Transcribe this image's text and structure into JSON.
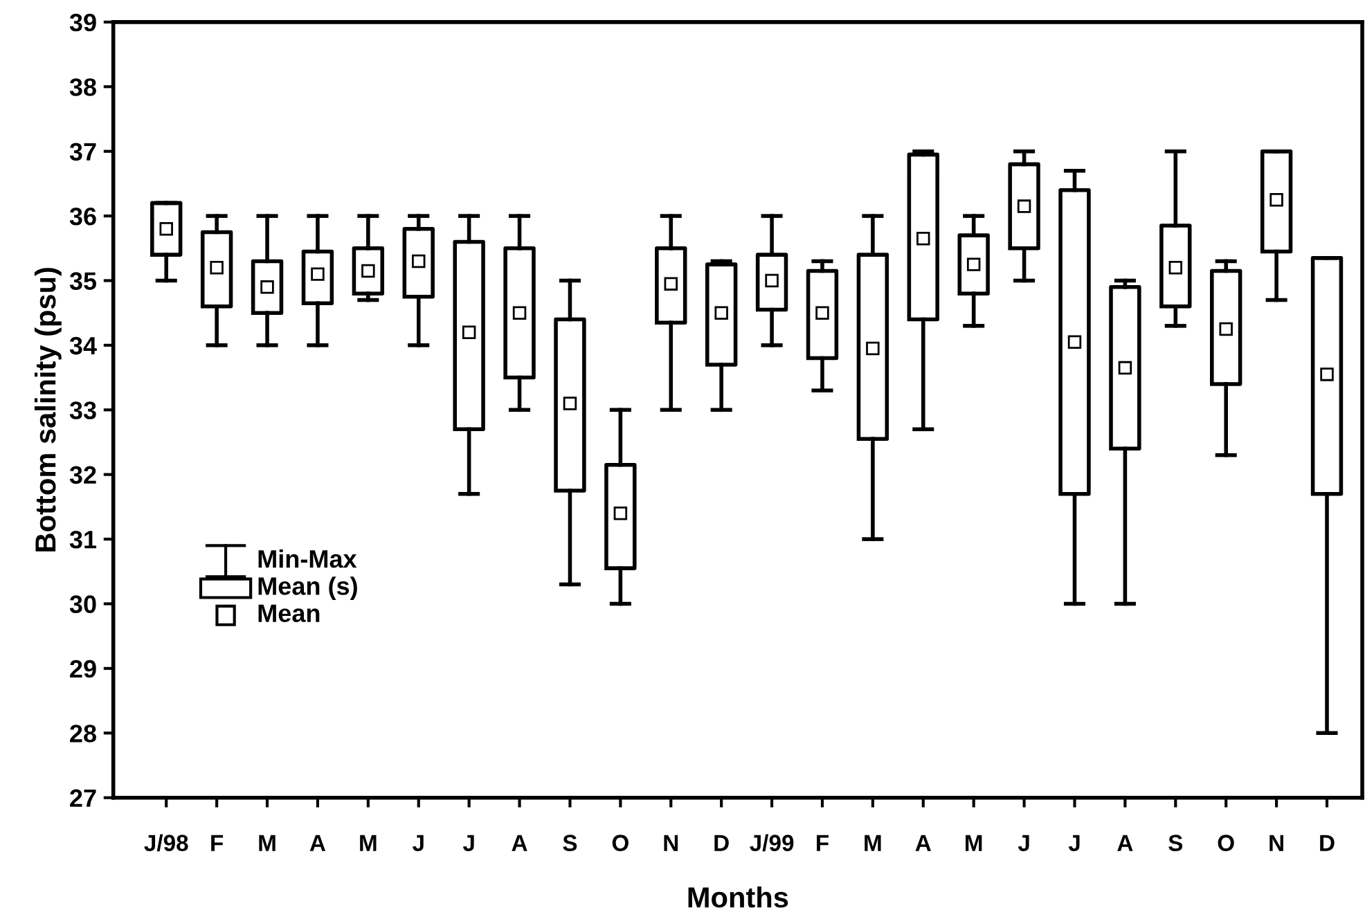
{
  "chart_data": {
    "type": "box",
    "xlabel": "Months",
    "ylabel": "Bottom salinity (psu)",
    "categories": [
      "J/98",
      "F",
      "M",
      "A",
      "M",
      "J",
      "J",
      "A",
      "S",
      "O",
      "N",
      "D",
      "J/99",
      "F",
      "M",
      "A",
      "M",
      "J",
      "J",
      "A",
      "S",
      "O",
      "N",
      "D"
    ],
    "boxes": [
      {
        "low": 35.0,
        "q1": 35.4,
        "q3": 36.2,
        "high": 36.2,
        "mean": 35.8
      },
      {
        "low": 34.0,
        "q1": 34.6,
        "q3": 35.75,
        "high": 36.0,
        "mean": 35.2
      },
      {
        "low": 34.0,
        "q1": 34.5,
        "q3": 35.3,
        "high": 36.0,
        "mean": 34.9
      },
      {
        "low": 34.0,
        "q1": 34.65,
        "q3": 35.45,
        "high": 36.0,
        "mean": 35.1
      },
      {
        "low": 34.7,
        "q1": 34.8,
        "q3": 35.5,
        "high": 36.0,
        "mean": 35.15
      },
      {
        "low": 34.0,
        "q1": 34.75,
        "q3": 35.8,
        "high": 36.0,
        "mean": 35.3
      },
      {
        "low": 31.7,
        "q1": 32.7,
        "q3": 35.6,
        "high": 36.0,
        "mean": 34.2
      },
      {
        "low": 33.0,
        "q1": 33.5,
        "q3": 35.5,
        "high": 36.0,
        "mean": 34.5
      },
      {
        "low": 30.3,
        "q1": 31.75,
        "q3": 34.4,
        "high": 35.0,
        "mean": 33.1
      },
      {
        "low": 30.0,
        "q1": 30.55,
        "q3": 32.15,
        "high": 33.0,
        "mean": 31.4
      },
      {
        "low": 33.0,
        "q1": 34.35,
        "q3": 35.5,
        "high": 36.0,
        "mean": 34.95
      },
      {
        "low": 33.0,
        "q1": 33.7,
        "q3": 35.25,
        "high": 35.3,
        "mean": 34.5
      },
      {
        "low": 34.0,
        "q1": 34.55,
        "q3": 35.4,
        "high": 36.0,
        "mean": 35.0
      },
      {
        "low": 33.3,
        "q1": 33.8,
        "q3": 35.15,
        "high": 35.3,
        "mean": 34.5
      },
      {
        "low": 31.0,
        "q1": 32.55,
        "q3": 35.4,
        "high": 36.0,
        "mean": 33.95
      },
      {
        "low": 32.7,
        "q1": 34.4,
        "q3": 36.95,
        "high": 37.0,
        "mean": 35.65
      },
      {
        "low": 34.3,
        "q1": 34.8,
        "q3": 35.7,
        "high": 36.0,
        "mean": 35.25
      },
      {
        "low": 35.0,
        "q1": 35.5,
        "q3": 36.8,
        "high": 37.0,
        "mean": 36.15
      },
      {
        "low": 30.0,
        "q1": 31.7,
        "q3": 36.4,
        "high": 36.7,
        "mean": 34.05
      },
      {
        "low": 30.0,
        "q1": 32.4,
        "q3": 34.9,
        "high": 35.0,
        "mean": 33.65
      },
      {
        "low": 34.3,
        "q1": 34.6,
        "q3": 35.85,
        "high": 37.0,
        "mean": 35.2
      },
      {
        "low": 32.3,
        "q1": 33.4,
        "q3": 35.15,
        "high": 35.3,
        "mean": 34.25
      },
      {
        "low": 34.7,
        "q1": 35.45,
        "q3": 37.0,
        "high": 37.0,
        "mean": 36.25
      },
      {
        "low": 28.0,
        "q1": 31.7,
        "q3": 35.35,
        "high": 35.35,
        "mean": 33.55
      }
    ],
    "ylim": [
      27,
      39
    ],
    "yticks": [
      27,
      28,
      29,
      30,
      31,
      32,
      33,
      34,
      35,
      36,
      37,
      38,
      39
    ],
    "annotations": [
      "Min-Max",
      "Mean (s)",
      "Mean"
    ],
    "grid": false,
    "marker": "square"
  }
}
